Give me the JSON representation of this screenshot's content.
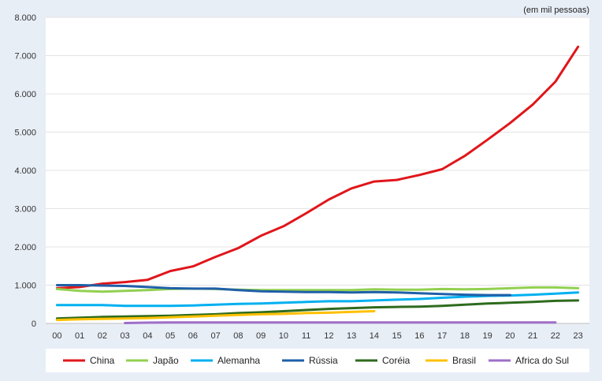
{
  "chart_data": {
    "type": "line",
    "unit_note": "(em mil pessoas)",
    "categories": [
      "00",
      "01",
      "02",
      "03",
      "04",
      "05",
      "06",
      "07",
      "08",
      "09",
      "10",
      "11",
      "12",
      "13",
      "14",
      "15",
      "16",
      "17",
      "18",
      "19",
      "20",
      "21",
      "22",
      "23"
    ],
    "y_ticks": [
      "0",
      "1.000",
      "2.000",
      "3.000",
      "4.000",
      "5.000",
      "6.000",
      "7.000",
      "8.000"
    ],
    "ylim": [
      0,
      8000
    ],
    "grid": true,
    "legend_position": "bottom",
    "series": [
      {
        "name": "China",
        "color": "#e0161b",
        "values": [
          920,
          950,
          1040,
          1080,
          1140,
          1370,
          1490,
          1740,
          1970,
          2290,
          2540,
          2880,
          3240,
          3530,
          3710,
          3750,
          3880,
          4030,
          4380,
          4800,
          5240,
          5720,
          6320,
          7230
        ]
      },
      {
        "name": "Japão",
        "color": "#92d050",
        "values": [
          900,
          850,
          830,
          850,
          870,
          900,
          910,
          900,
          880,
          870,
          870,
          870,
          870,
          870,
          890,
          880,
          880,
          900,
          890,
          900,
          920,
          940,
          940,
          920
        ]
      },
      {
        "name": "Alemanha",
        "color": "#00b0f0",
        "values": [
          480,
          480,
          480,
          460,
          460,
          460,
          470,
          490,
          510,
          520,
          540,
          560,
          580,
          580,
          600,
          620,
          640,
          670,
          700,
          720,
          730,
          750,
          780,
          810
        ]
      },
      {
        "name": "Rússia",
        "color": "#1f5fa8",
        "values": [
          1000,
          1000,
          990,
          980,
          950,
          920,
          910,
          910,
          870,
          840,
          830,
          820,
          820,
          810,
          820,
          810,
          790,
          770,
          750,
          740,
          740,
          null,
          null,
          null
        ]
      },
      {
        "name": "Coréia",
        "color": "#2e6b1e",
        "values": [
          130,
          150,
          170,
          180,
          190,
          200,
          220,
          240,
          270,
          290,
          320,
          350,
          380,
          400,
          420,
          430,
          440,
          460,
          490,
          520,
          540,
          560,
          590,
          600
        ]
      },
      {
        "name": "Brasil",
        "color": "#ffc000",
        "values": [
          90,
          110,
          120,
          130,
          140,
          160,
          180,
          200,
          220,
          240,
          250,
          270,
          280,
          300,
          320,
          null,
          null,
          null,
          null,
          null,
          null,
          null,
          null,
          null
        ]
      },
      {
        "name": "Africa do Sul",
        "color": "#9e6ec9",
        "values": [
          null,
          null,
          null,
          10,
          20,
          25,
          25,
          25,
          25,
          25,
          25,
          25,
          25,
          25,
          25,
          25,
          25,
          25,
          25,
          25,
          25,
          25,
          25,
          null
        ]
      }
    ]
  }
}
